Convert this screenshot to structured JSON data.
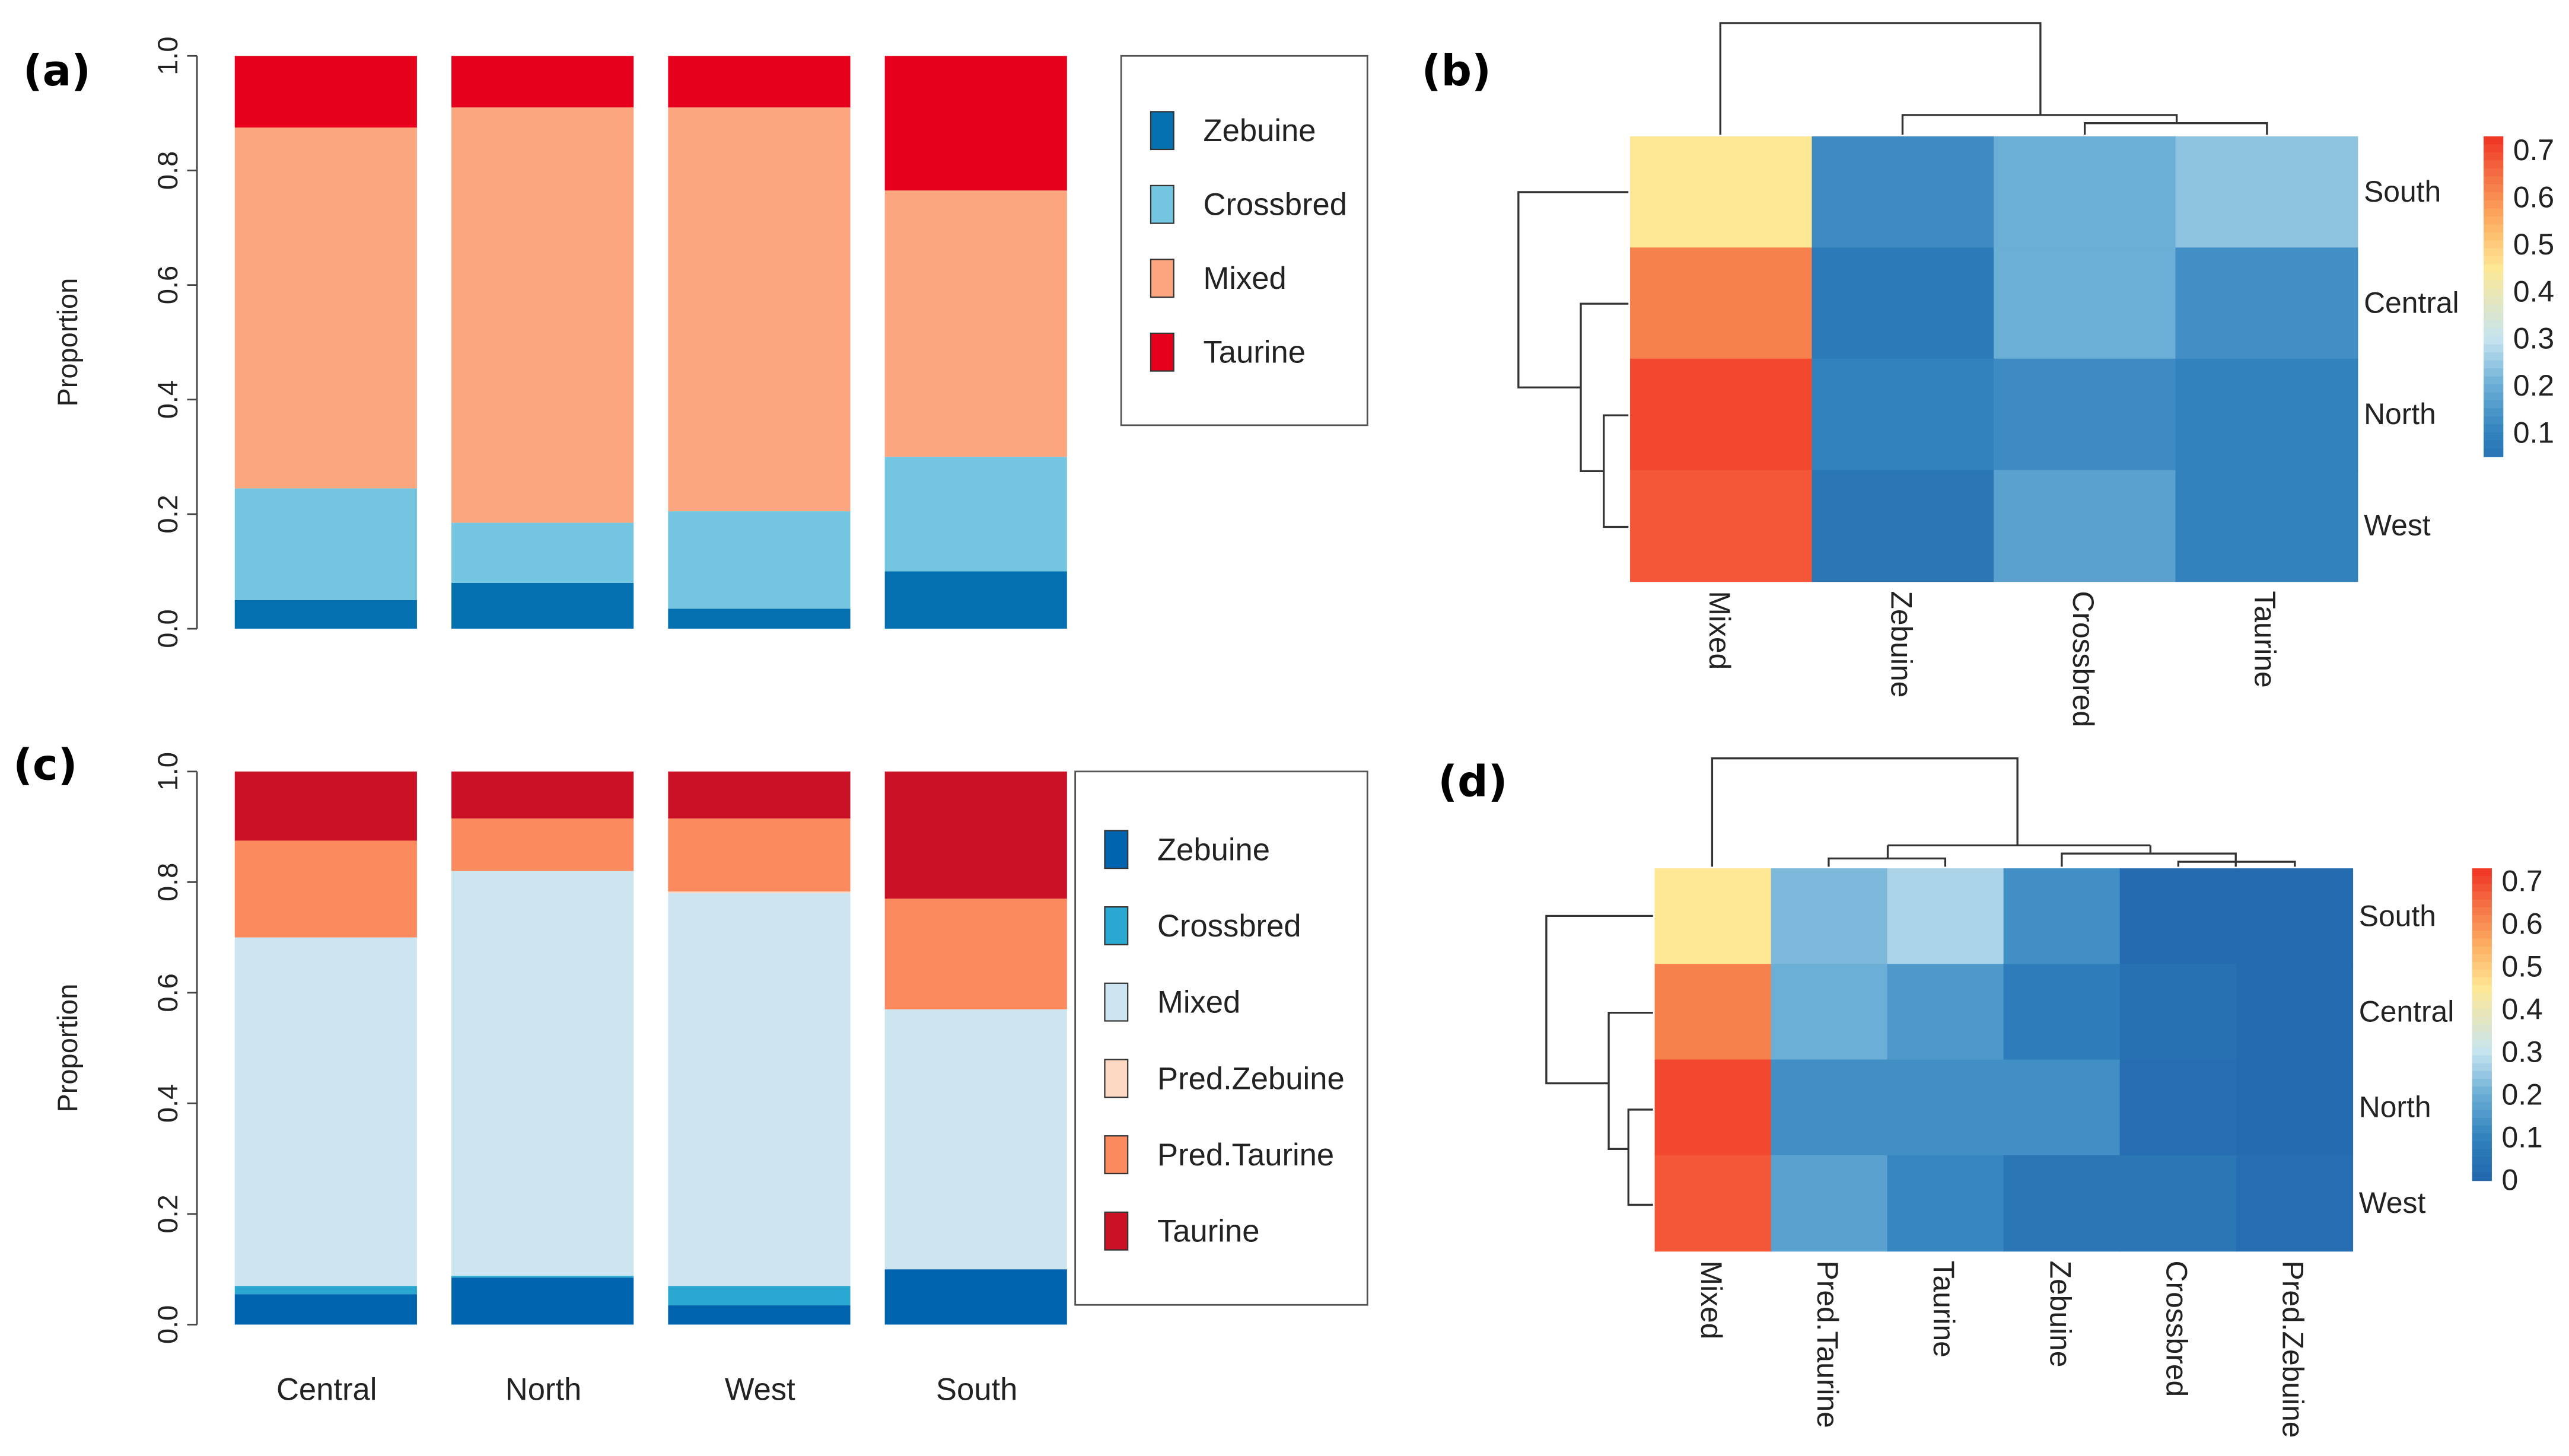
{
  "panels": {
    "a": "(a)",
    "b": "(b)",
    "c": "(c)",
    "d": "(d)"
  },
  "chart_data": [
    {
      "type": "bar",
      "stacked": true,
      "title": "",
      "xlabel": "",
      "ylabel": "Proportion",
      "ylim": [
        0,
        1
      ],
      "yticks": [
        "0.0",
        "0.2",
        "0.4",
        "0.6",
        "0.8",
        "1.0"
      ],
      "categories": [
        "Central",
        "North",
        "West",
        "South"
      ],
      "legend_position": "right",
      "series": [
        {
          "name": "Zebuine",
          "color": "#0570b0",
          "values": [
            0.05,
            0.08,
            0.035,
            0.1
          ]
        },
        {
          "name": "Crossbred",
          "color": "#74c5df",
          "values": [
            0.195,
            0.105,
            0.17,
            0.2
          ]
        },
        {
          "name": "Mixed",
          "color": "#fca67f",
          "values": [
            0.63,
            0.725,
            0.705,
            0.465
          ]
        },
        {
          "name": "Taurine",
          "color": "#e7001c",
          "values": [
            0.125,
            0.09,
            0.09,
            0.235
          ]
        }
      ]
    },
    {
      "type": "heatmap",
      "rows": [
        "South",
        "Central",
        "North",
        "West"
      ],
      "columns": [
        "Mixed",
        "Zebuine",
        "Crossbred",
        "Taurine"
      ],
      "values": [
        [
          0.45,
          0.12,
          0.2,
          0.24
        ],
        [
          0.62,
          0.07,
          0.2,
          0.13
        ],
        [
          0.7,
          0.1,
          0.12,
          0.1
        ],
        [
          0.68,
          0.06,
          0.17,
          0.1
        ]
      ],
      "colorbar_ticks": [
        "0.7",
        "0.6",
        "0.5",
        "0.4",
        "0.3",
        "0.2",
        "0.1"
      ],
      "colorbar_range": [
        0.05,
        0.73
      ]
    },
    {
      "type": "bar",
      "stacked": true,
      "title": "",
      "xlabel": "",
      "ylabel": "Proportion",
      "ylim": [
        0,
        1
      ],
      "yticks": [
        "0.0",
        "0.2",
        "0.4",
        "0.6",
        "0.8",
        "1.0"
      ],
      "categories": [
        "Central",
        "North",
        "West",
        "South"
      ],
      "legend_position": "right",
      "series": [
        {
          "name": "Zebuine",
          "color": "#0063ad",
          "values": [
            0.055,
            0.085,
            0.035,
            0.1
          ]
        },
        {
          "name": "Crossbred",
          "color": "#2ba8d2",
          "values": [
            0.015,
            0.003,
            0.035,
            0.0
          ]
        },
        {
          "name": "Mixed",
          "color": "#cce5f0",
          "values": [
            0.63,
            0.732,
            0.71,
            0.47
          ]
        },
        {
          "name": "Pred.Zebuine",
          "color": "#fdd9c4",
          "values": [
            0.0,
            0.0,
            0.003,
            0.0
          ]
        },
        {
          "name": "Pred.Taurine",
          "color": "#fc8a5f",
          "values": [
            0.175,
            0.095,
            0.132,
            0.2
          ]
        },
        {
          "name": "Taurine",
          "color": "#cb1125",
          "values": [
            0.125,
            0.085,
            0.085,
            0.23
          ]
        }
      ]
    },
    {
      "type": "heatmap",
      "rows": [
        "South",
        "Central",
        "North",
        "West"
      ],
      "columns": [
        "Mixed",
        "Pred.Taurine",
        "Taurine",
        "Zebuine",
        "Crossbred",
        "Pred.Zebuine"
      ],
      "values": [
        [
          0.45,
          0.22,
          0.27,
          0.13,
          0.02,
          0.02
        ],
        [
          0.62,
          0.2,
          0.15,
          0.08,
          0.04,
          0.02
        ],
        [
          0.7,
          0.13,
          0.13,
          0.13,
          0.03,
          0.02
        ],
        [
          0.68,
          0.17,
          0.11,
          0.06,
          0.06,
          0.03
        ]
      ],
      "colorbar_ticks": [
        "0.7",
        "0.6",
        "0.5",
        "0.4",
        "0.3",
        "0.2",
        "0.1",
        "0"
      ],
      "colorbar_range": [
        0.0,
        0.73
      ]
    }
  ]
}
